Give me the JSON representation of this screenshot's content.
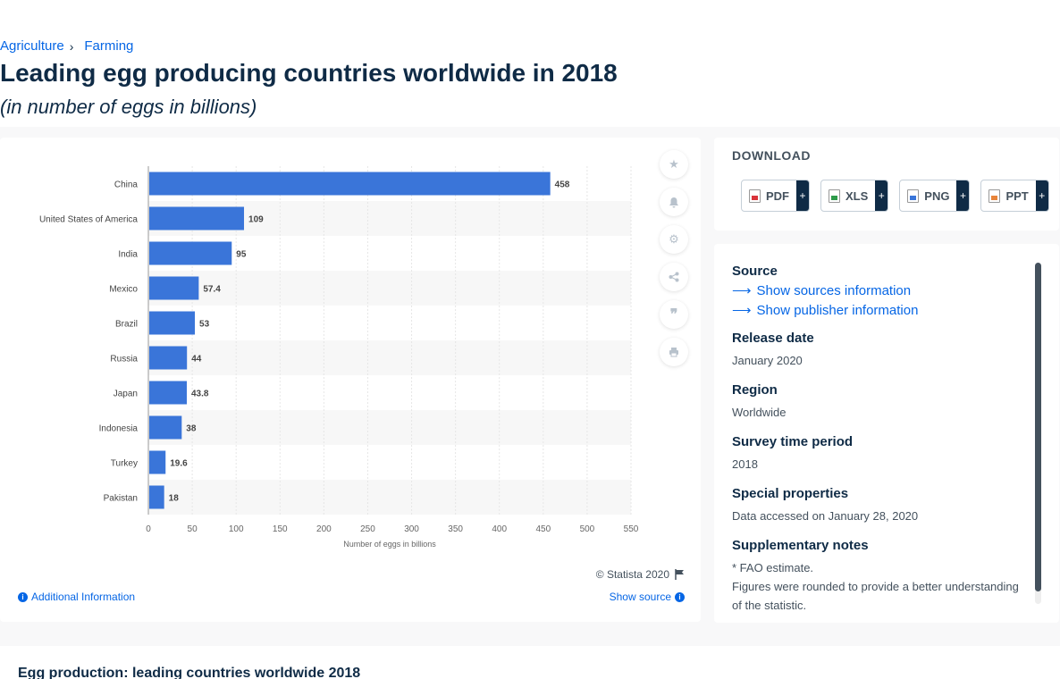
{
  "breadcrumb": {
    "items": [
      "Agriculture",
      "Farming"
    ]
  },
  "header": {
    "title": "Leading egg producing countries worldwide in 2018",
    "subtitle": "(in number of eggs in billions)"
  },
  "chart_data": {
    "type": "bar",
    "orientation": "horizontal",
    "categories": [
      "China",
      "United States of America",
      "India",
      "Mexico",
      "Brazil",
      "Russia",
      "Japan",
      "Indonesia",
      "Turkey",
      "Pakistan"
    ],
    "values": [
      458,
      109,
      95,
      57.4,
      53,
      44,
      43.8,
      38,
      19.6,
      18
    ],
    "value_labels": [
      "458",
      "109",
      "95",
      "57.4",
      "53",
      "44",
      "43.8",
      "38",
      "19.6",
      "18"
    ],
    "xlabel": "Number of eggs in billions",
    "ylabel": "",
    "xlim": [
      0,
      550
    ],
    "ticks": [
      "0",
      "50",
      "100",
      "150",
      "200",
      "250",
      "300",
      "350",
      "400",
      "450",
      "500",
      "550"
    ],
    "grid": true,
    "bar_color": "#3a75d9"
  },
  "chart_footer": {
    "copyright": "© Statista 2020",
    "additional_info": "Additional Information",
    "show_source": "Show source"
  },
  "tools": {
    "icons": [
      "star-icon",
      "bell-icon",
      "gear-icon",
      "share-icon",
      "quote-icon",
      "print-icon"
    ]
  },
  "download": {
    "title": "DOWNLOAD",
    "buttons": [
      {
        "label": "PDF",
        "color": "#d9343b"
      },
      {
        "label": "XLS",
        "color": "#2e9b4a"
      },
      {
        "label": "PNG",
        "color": "#3a75d9"
      },
      {
        "label": "PPT",
        "color": "#e8843a"
      }
    ],
    "plus": "+"
  },
  "info": {
    "source_label": "Source",
    "sources_link": "Show sources information",
    "publisher_link": "Show publisher information",
    "release_label": "Release date",
    "release_value": "January 2020",
    "region_label": "Region",
    "region_value": "Worldwide",
    "survey_label": "Survey time period",
    "survey_value": "2018",
    "special_label": "Special properties",
    "special_value": "Data accessed on January 28, 2020",
    "notes_label": "Supplementary notes",
    "notes_line1": "* FAO estimate.",
    "notes_line2": "Figures were rounded to provide a better understanding of the statistic."
  },
  "bottom": {
    "title": "Egg production: leading countries worldwide 2018"
  },
  "colors": {
    "accent": "#0666e5",
    "navy": "#0f2b46"
  }
}
